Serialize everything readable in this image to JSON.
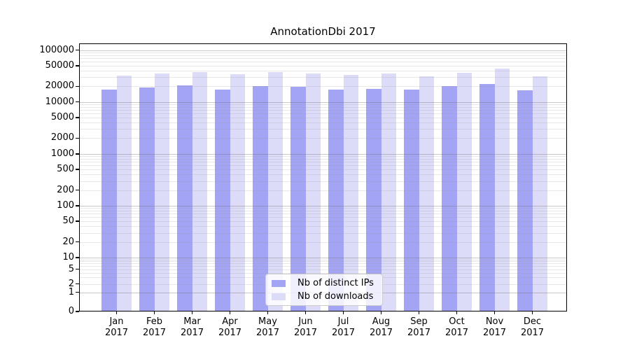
{
  "title": "AnnotationDbi 2017",
  "chart_data": {
    "type": "bar",
    "title": "AnnotationDbi 2017",
    "categories": [
      "Jan",
      "Feb",
      "Mar",
      "Apr",
      "May",
      "Jun",
      "Jul",
      "Aug",
      "Sep",
      "Oct",
      "Nov",
      "Dec"
    ],
    "year_label": "2017",
    "series": [
      {
        "name": "Nb of distinct IPs",
        "color": "#a4a4f4",
        "values": [
          17100,
          18800,
          20600,
          17100,
          20400,
          19400,
          17100,
          18000,
          17500,
          20000,
          22500,
          16900
        ]
      },
      {
        "name": "Nb of downloads",
        "color": "#dcdcf8",
        "values": [
          32600,
          35700,
          38000,
          34700,
          37800,
          35700,
          32800,
          35700,
          31600,
          36600,
          43700,
          31000
        ]
      }
    ],
    "yscale": "symlog",
    "y_tick_values": [
      0,
      1,
      2,
      5,
      10,
      20,
      50,
      100,
      200,
      500,
      1000,
      2000,
      5000,
      10000,
      20000,
      50000,
      100000
    ],
    "ylim": [
      0,
      134000
    ],
    "grid": {
      "horizontal": true,
      "major_color": "rgba(110,110,110,0.38)",
      "minor_color": "rgba(150,150,150,0.22)"
    },
    "legend_position": "lower center",
    "xlabel": "",
    "ylabel": ""
  },
  "legend": {
    "items": [
      {
        "label": "Nb of distinct IPs"
      },
      {
        "label": "Nb of downloads"
      }
    ]
  }
}
